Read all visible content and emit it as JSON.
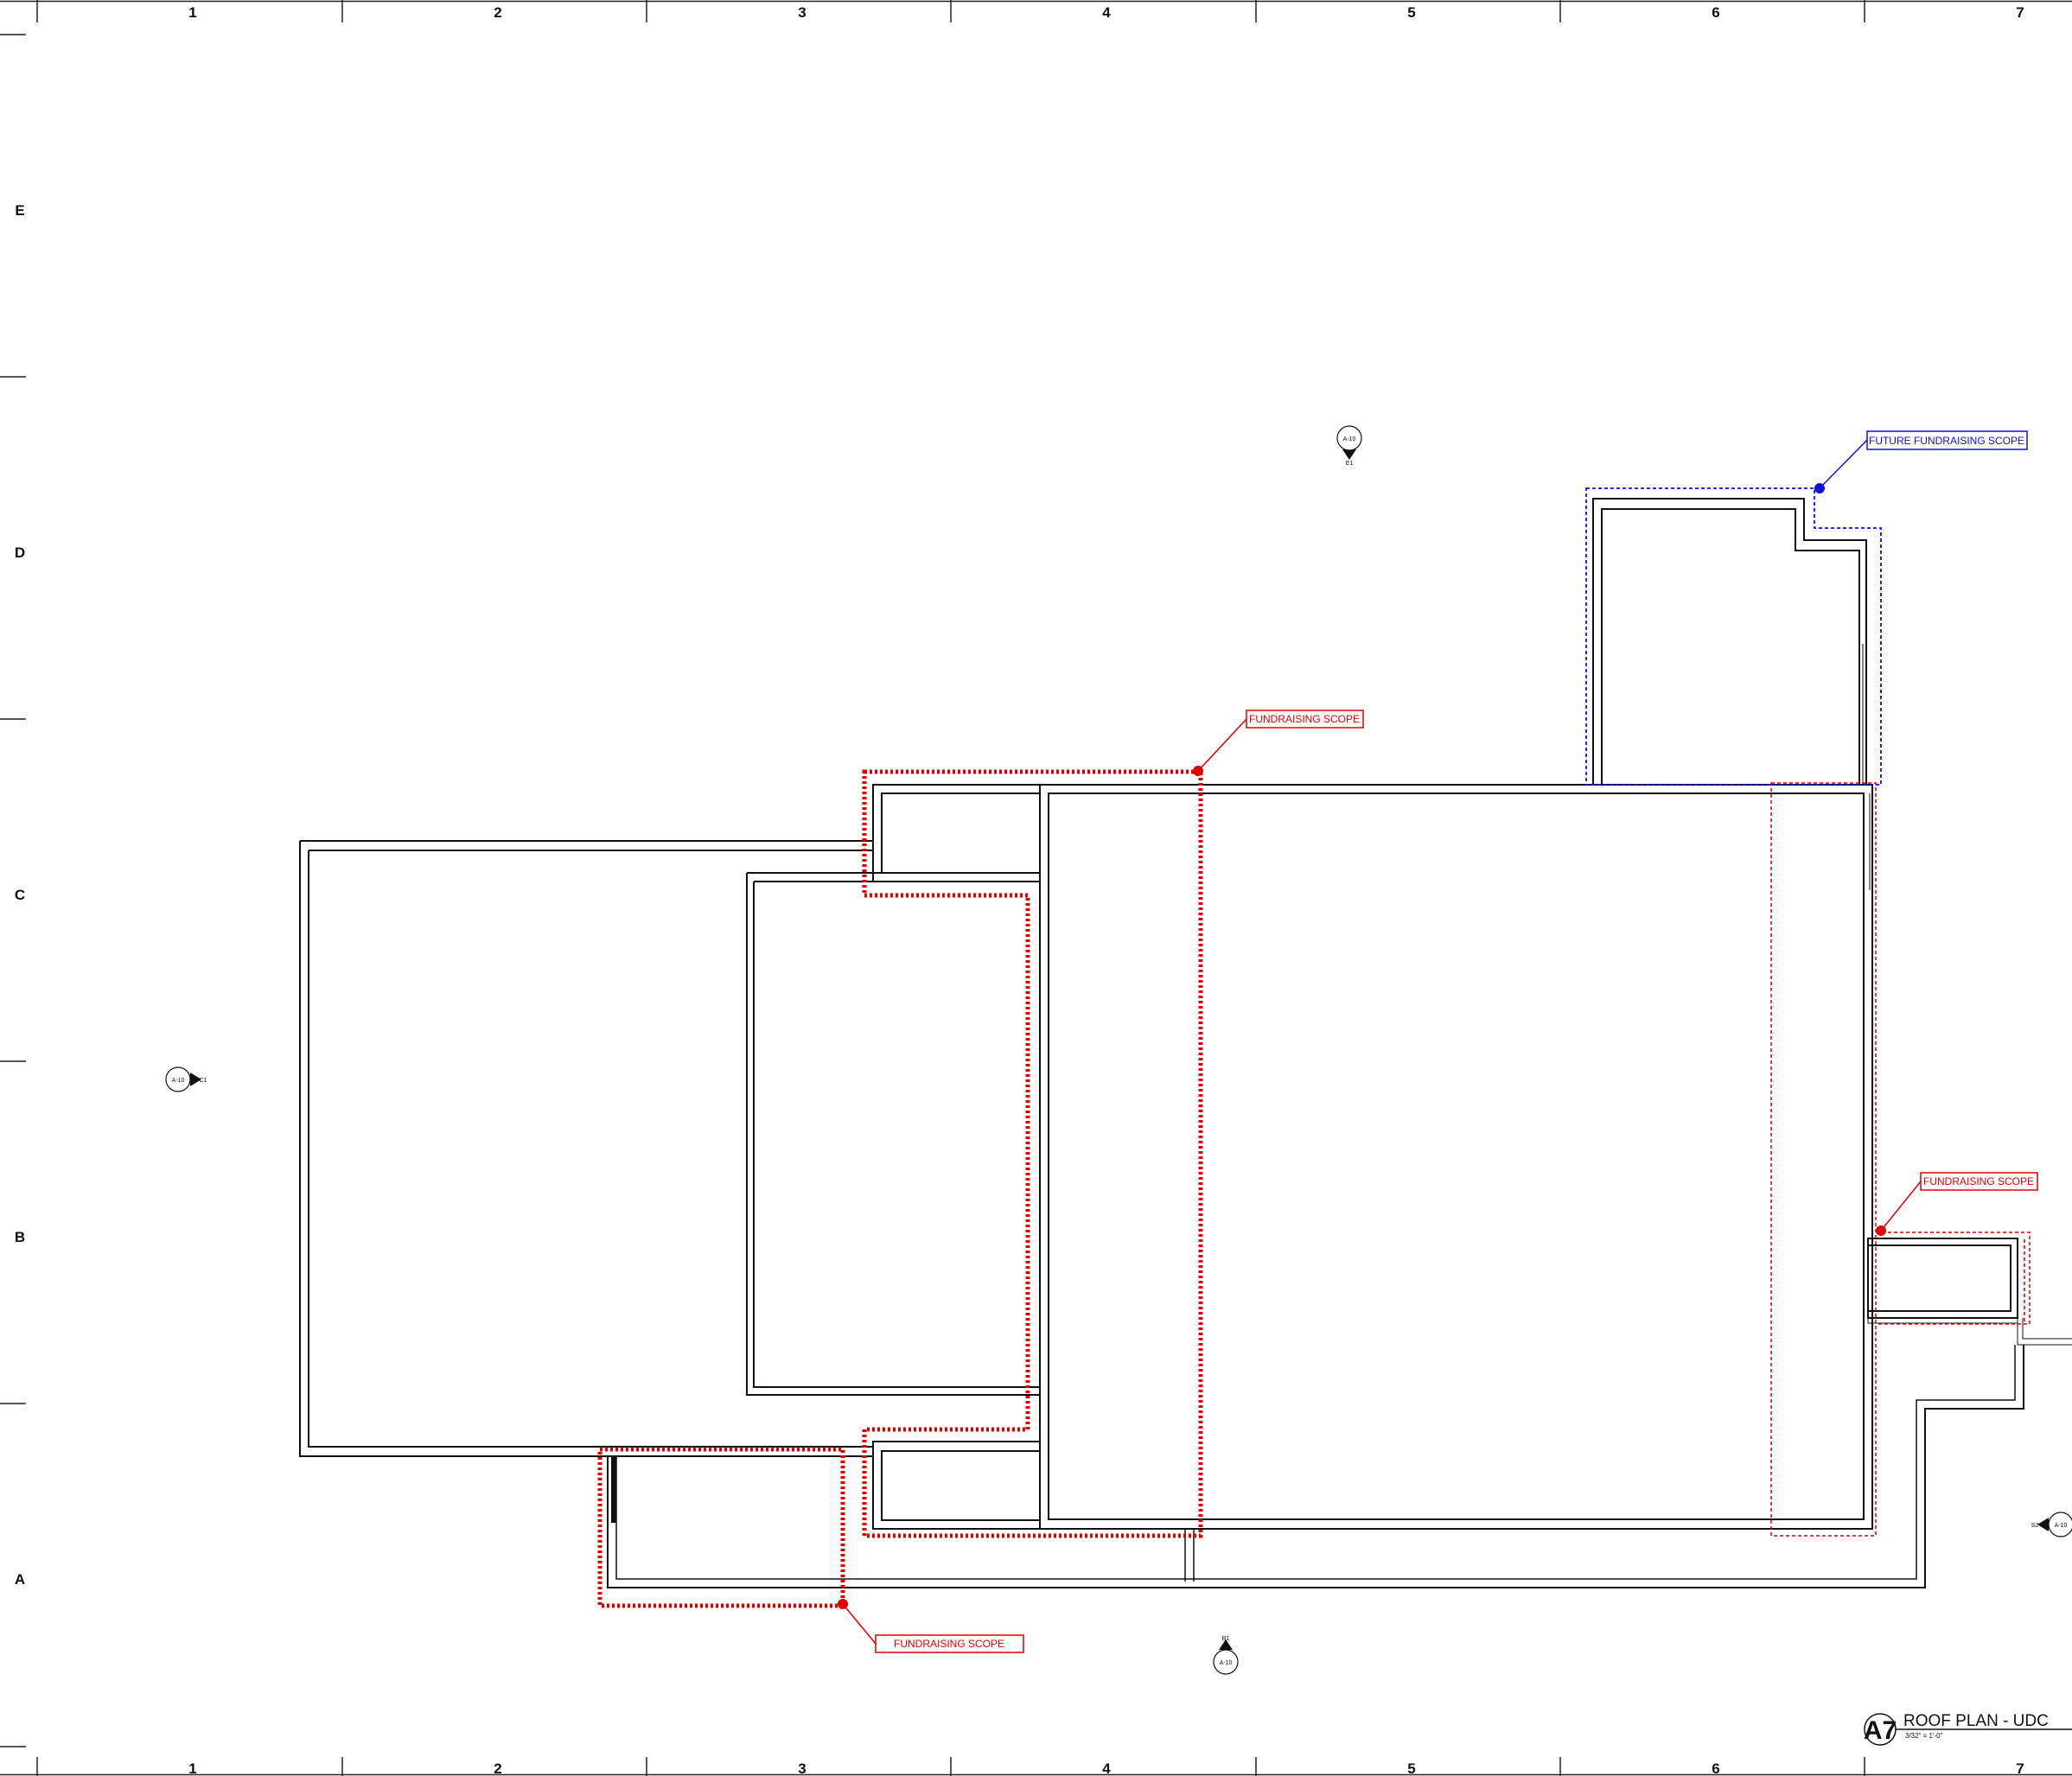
{
  "grid": {
    "columns": [
      "1",
      "2",
      "3",
      "4",
      "5",
      "6",
      "7"
    ],
    "rows": [
      "E",
      "D",
      "C",
      "B",
      "A"
    ]
  },
  "callouts": {
    "future": "FUTURE FUNDRAISING SCOPE",
    "top": "FUNDRAISING SCOPE",
    "right": "FUNDRAISING SCOPE",
    "bottom": "FUNDRAISING SCOPE"
  },
  "section_tags": {
    "top_sheet": "A-10",
    "top_num": "E1",
    "left_sheet": "A-10",
    "left_num": "C1",
    "right_sheet": "A-10",
    "right_num": "S2",
    "bottom_sheet": "A-10",
    "bottom_num": "B1"
  },
  "title_block": {
    "mark": "A7",
    "title": "ROOF PLAN - UDC",
    "scale": "3/32\" = 1'-0\""
  },
  "colors": {
    "line": "#111111",
    "scope_red": "#e00000",
    "scope_blue": "#1010dd"
  }
}
